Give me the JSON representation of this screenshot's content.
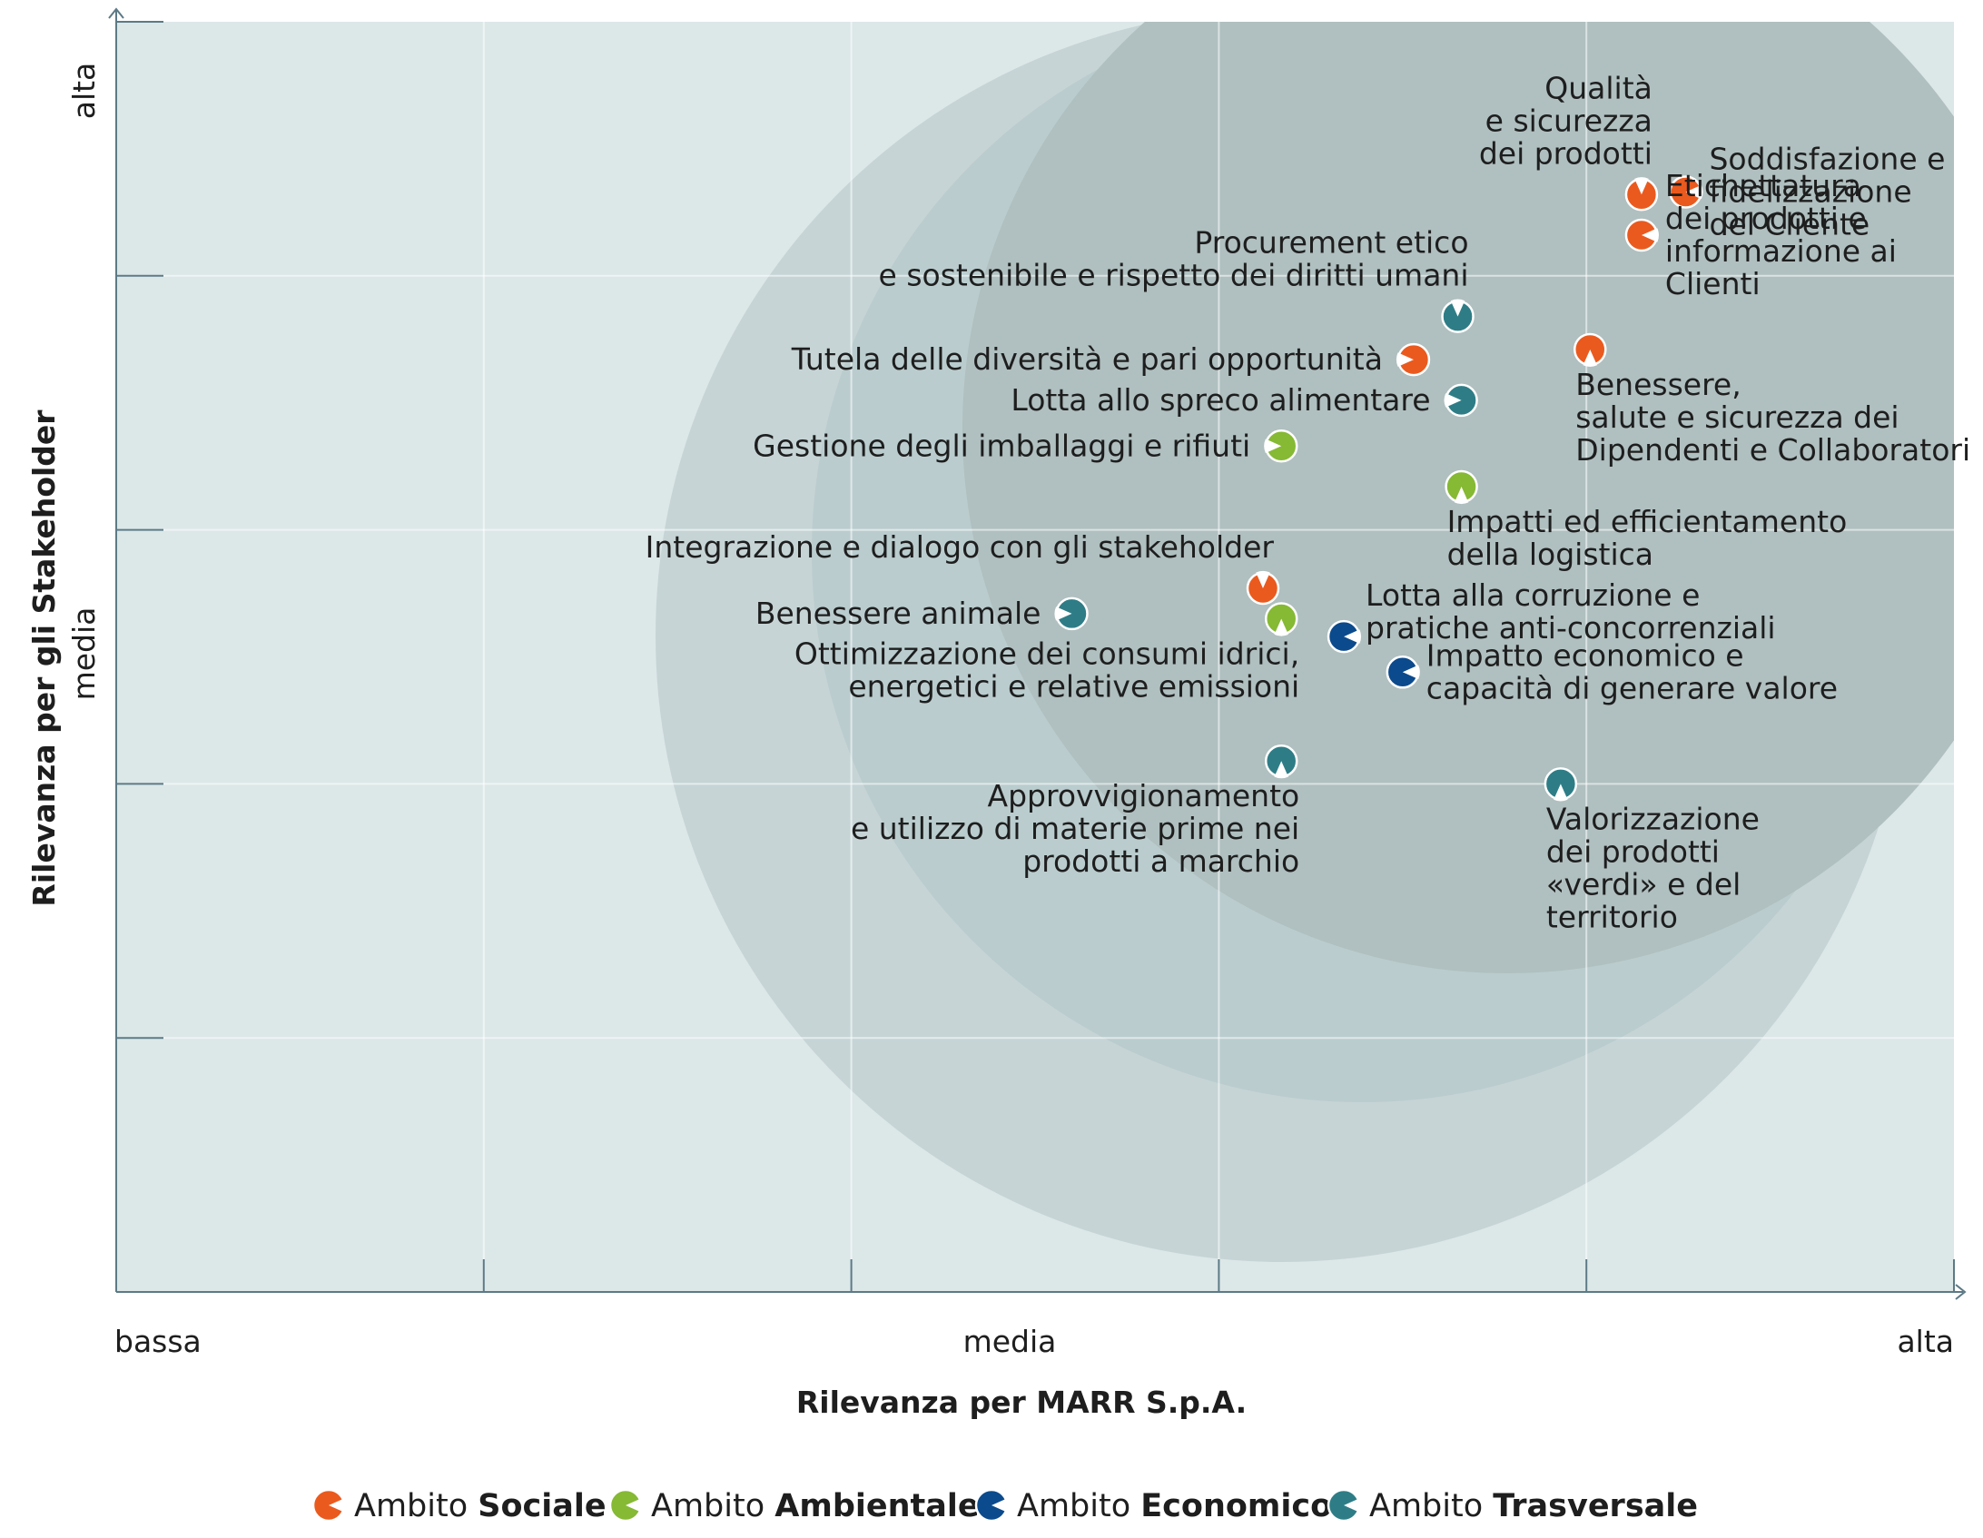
{
  "chart_data": {
    "type": "scatter",
    "title": "",
    "xlabel": "Rilevanza per MARR S.p.A.",
    "ylabel": "Rilevanza per gli Stakeholder",
    "x_tick_labels": [
      "bassa",
      "media",
      "alta"
    ],
    "y_tick_labels": [
      "alta",
      "media"
    ],
    "xlim": [
      0,
      5
    ],
    "ylim": [
      0,
      5
    ],
    "grid": true,
    "legend_position": "bottom",
    "categories": [
      {
        "key": "sociale",
        "prefix": "Ambito",
        "name": "Sociale",
        "color": "#ea5a1e"
      },
      {
        "key": "ambientale",
        "prefix": "Ambito",
        "name": "Ambientale",
        "color": "#86b934"
      },
      {
        "key": "economico",
        "prefix": "Ambito",
        "name": "Economico",
        "color": "#0b4a8c"
      },
      {
        "key": "trasversale",
        "prefix": "Ambito",
        "name": "Trasversale",
        "color": "#2e7d86"
      }
    ],
    "points": [
      {
        "category": "sociale",
        "x": 4.15,
        "y": 4.32,
        "label_lines": [
          "Qualità",
          "e sicurezza",
          "dei prodotti"
        ],
        "label_side": "left-above"
      },
      {
        "category": "sociale",
        "x": 4.27,
        "y": 4.33,
        "label_lines": [
          "Soddisfazione e",
          "fidelizzazione",
          "del Cliente"
        ],
        "label_side": "right"
      },
      {
        "category": "sociale",
        "x": 4.15,
        "y": 4.16,
        "label_lines": [
          "Etichettatura",
          "dei prodotti e",
          "informazione ai",
          "Clienti"
        ],
        "label_side": "right"
      },
      {
        "category": "sociale",
        "x": 4.01,
        "y": 3.71,
        "label_lines": [
          "Benessere,",
          "salute e sicurezza dei",
          "Dipendenti e Collaboratori"
        ],
        "label_side": "below-right"
      },
      {
        "category": "trasversale",
        "x": 3.65,
        "y": 3.84,
        "label_lines": [
          "Procurement etico",
          "e sostenibile e rispetto dei diritti umani"
        ],
        "label_side": "left-above"
      },
      {
        "category": "sociale",
        "x": 3.53,
        "y": 3.67,
        "label_lines": [
          "Tutela delle diversità e pari opportunità"
        ],
        "label_side": "left"
      },
      {
        "category": "trasversale",
        "x": 3.66,
        "y": 3.51,
        "label_lines": [
          "Lotta allo spreco alimentare"
        ],
        "label_side": "left"
      },
      {
        "category": "ambientale",
        "x": 3.17,
        "y": 3.33,
        "label_lines": [
          "Gestione degli imballaggi e rifiuti"
        ],
        "label_side": "left"
      },
      {
        "category": "ambientale",
        "x": 3.66,
        "y": 3.17,
        "label_lines": [
          "Impatti ed efficientamento",
          "della logistica"
        ],
        "label_side": "below-right"
      },
      {
        "category": "sociale",
        "x": 3.12,
        "y": 2.77,
        "label_lines": [
          "Integrazione e dialogo con gli stakeholder"
        ],
        "label_side": "left-above"
      },
      {
        "category": "trasversale",
        "x": 2.6,
        "y": 2.67,
        "label_lines": [
          "Benessere animale"
        ],
        "label_side": "left"
      },
      {
        "category": "ambientale",
        "x": 3.17,
        "y": 2.65,
        "label_lines": [
          "Ottimizzazione dei consumi idrici,",
          "energetici e relative emissioni"
        ],
        "label_side": "left-below"
      },
      {
        "category": "economico",
        "x": 3.34,
        "y": 2.58,
        "label_lines": [
          "Lotta alla corruzione e",
          "pratiche anti-concorrenziali"
        ],
        "label_side": "right-above"
      },
      {
        "category": "economico",
        "x": 3.5,
        "y": 2.44,
        "label_lines": [
          "Impatto economico e",
          "capacità di generare valore"
        ],
        "label_side": "right"
      },
      {
        "category": "trasversale",
        "x": 3.17,
        "y": 2.09,
        "label_lines": [
          "Approvvigionamento",
          "e utilizzo di materie prime nei",
          "prodotti a marchio"
        ],
        "label_side": "left-below"
      },
      {
        "category": "trasversale",
        "x": 3.93,
        "y": 2.0,
        "label_lines": [
          "Valorizzazione",
          "dei prodotti",
          "«verdi» e del",
          "territorio"
        ],
        "label_side": "below-right"
      }
    ]
  }
}
